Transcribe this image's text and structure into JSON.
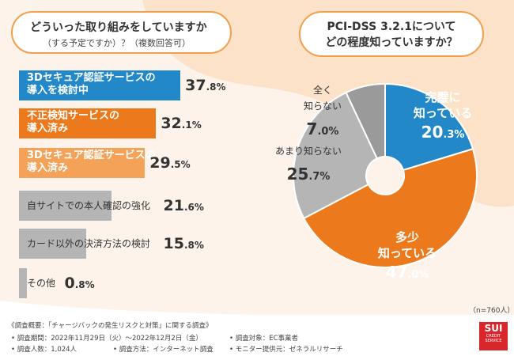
{
  "questions": {
    "left_line1": "どういった取り組みをしていますか",
    "left_line2": "（する予定ですか）？（複数回答可）",
    "right_line1": "PCI-DSS 3.2.1について",
    "right_line2": "どの程度知っていますか？"
  },
  "chart_data": [
    {
      "type": "bar",
      "orientation": "horizontal",
      "title": "どういった取り組みをしていますか（する予定ですか）？（複数回答可）",
      "categories": [
        "3Dセキュア認証サービスの導入を検討中",
        "不正検知サービスの導入済み",
        "3Dセキュア認証サービスの導入済み",
        "自サイトでの本人確認の強化",
        "カード以外の決済方法の検討",
        "その他"
      ],
      "values": [
        37.8,
        32.1,
        29.5,
        21.6,
        15.8,
        0.8
      ],
      "unit": "%",
      "bars": [
        {
          "line1": "3Dセキュア認証サービスの",
          "line2": "導入を検討中",
          "value": 37.8,
          "int": "37",
          "dec": ".8%",
          "color": "#2288c8"
        },
        {
          "line1": "不正検知サービスの",
          "line2": "導入済み",
          "value": 32.1,
          "int": "32",
          "dec": ".1%",
          "color": "#ec7a1c"
        },
        {
          "line1": "3Dセキュア認証サービスの",
          "line2": "導入済み",
          "value": 29.5,
          "int": "29",
          "dec": ".5%",
          "color": "#f3a258"
        },
        {
          "line1": "自サイトでの本人確認の強化",
          "line2": "",
          "value": 21.6,
          "int": "21",
          "dec": ".6%",
          "color": "#b5b5b5"
        },
        {
          "line1": "カード以外の決済方法の検討",
          "line2": "",
          "value": 15.8,
          "int": "15",
          "dec": ".8%",
          "color": "#b5b5b5"
        },
        {
          "line1": "その他",
          "line2": "",
          "value": 0.8,
          "int": "0",
          "dec": ".8%",
          "color": "#b5b5b5"
        }
      ]
    },
    {
      "type": "pie",
      "title": "PCI-DSS 3.2.1について どの程度知っていますか？",
      "n_label": "（n=760人）",
      "slices": [
        {
          "label1": "完璧に",
          "label2": "知っている",
          "value": 20.3,
          "int": "20",
          "dec": ".3%",
          "color": "#2288c8",
          "text_color": "#ffffff"
        },
        {
          "label1": "多少",
          "label2": "知っている",
          "value": 47.0,
          "int": "47",
          "dec": ".0%",
          "color": "#ec7a1c",
          "text_color": "#ffffff"
        },
        {
          "label1": "あまり知らない",
          "label2": "",
          "value": 25.7,
          "int": "25",
          "dec": ".7%",
          "color": "#b5b5b5",
          "text_color": "#333333"
        },
        {
          "label1": "全く",
          "label2": "知らない",
          "value": 7.0,
          "int": "7",
          "dec": ".0%",
          "color": "#9a9a9a",
          "text_color": "#333333"
        }
      ]
    }
  ],
  "footer": {
    "overview": "《調査概要：「チャージバックの発生リスクと対策」に関する調査》",
    "period": "• 調査期間：2022年11月29日（火）～2022年12月2日（金）",
    "target": "• 調査対象：EC事業者",
    "count": "• 調査人数：1,024人",
    "method": "• 調査方法：インターネット調査",
    "provider": "• モニター提供元：ゼネラルリサーチ"
  },
  "logo": {
    "line1": "SUI",
    "line2": "CREDIT",
    "line3": "SERVICE"
  }
}
